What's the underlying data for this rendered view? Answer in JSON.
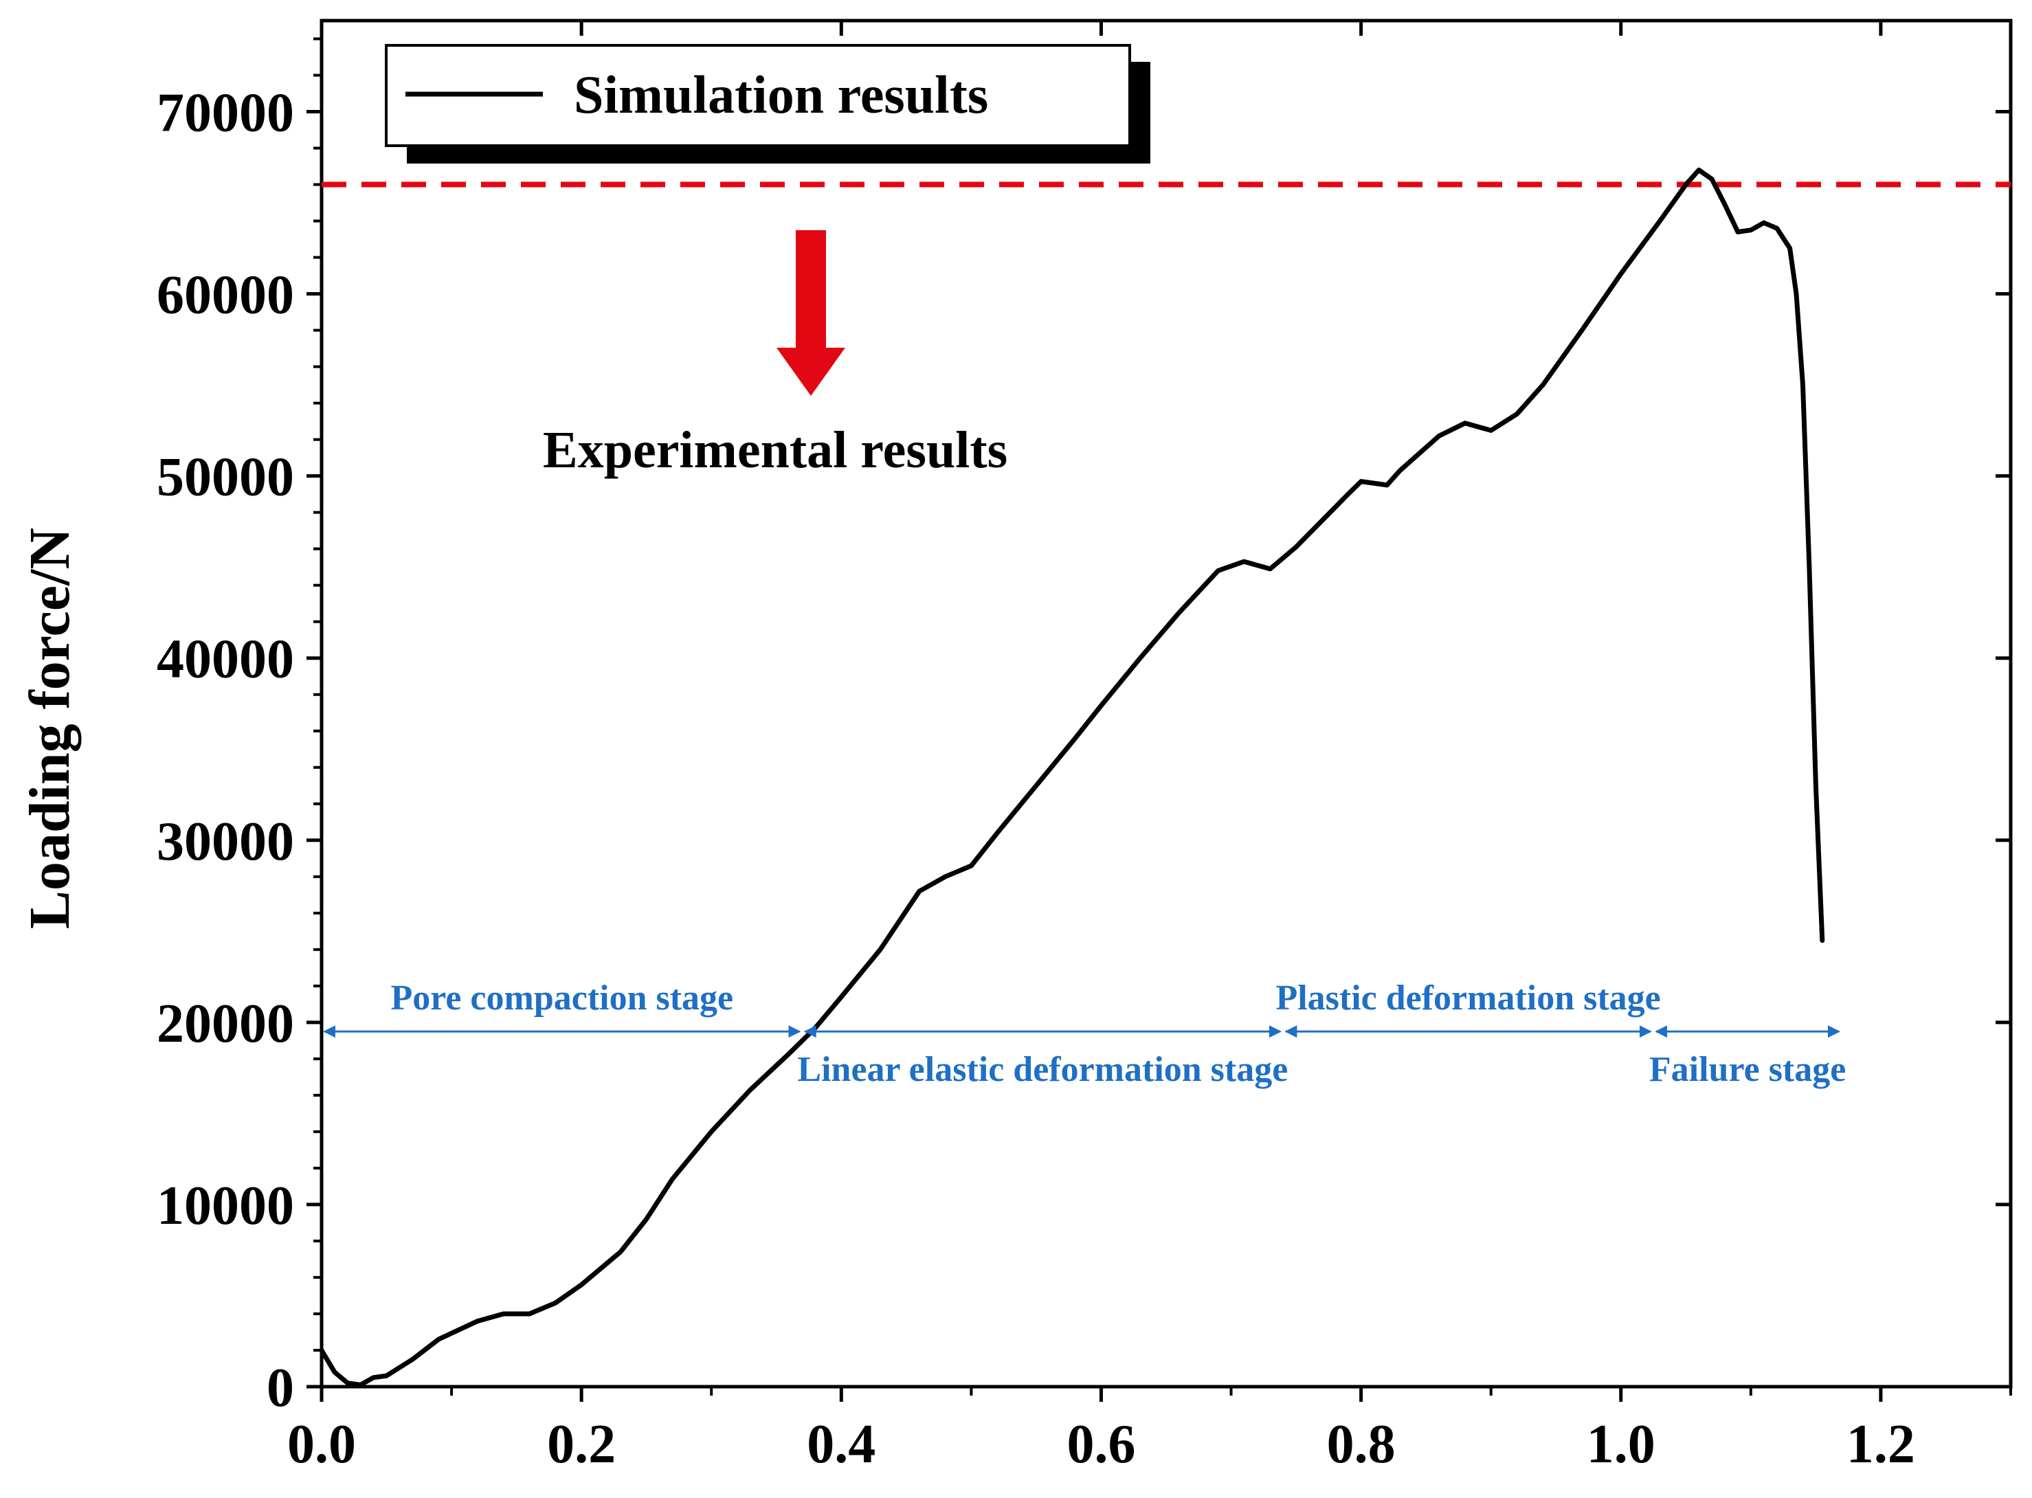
{
  "chart_data": {
    "type": "line",
    "title": "",
    "xlabel": "",
    "ylabel": "Loading force/N",
    "xlim": [
      0,
      1.3
    ],
    "ylim": [
      0,
      75000
    ],
    "x_ticks": [
      0.0,
      0.2,
      0.4,
      0.6,
      0.8,
      1.0,
      1.2
    ],
    "x_tick_labels": [
      "0.0",
      "0.2",
      "0.4",
      "0.6",
      "0.8",
      "1.0",
      "1.2"
    ],
    "y_ticks": [
      0,
      10000,
      20000,
      30000,
      40000,
      50000,
      60000,
      70000
    ],
    "y_tick_labels": [
      "0",
      "10000",
      "20000",
      "30000",
      "40000",
      "50000",
      "60000",
      "70000"
    ],
    "legend": {
      "placement": "top-left",
      "entries": [
        {
          "label": "Simulation results",
          "color": "#000000"
        }
      ]
    },
    "series": [
      {
        "name": "Simulation results",
        "color": "#000000",
        "points": [
          [
            0.0,
            2000
          ],
          [
            0.01,
            800
          ],
          [
            0.02,
            200
          ],
          [
            0.03,
            100
          ],
          [
            0.04,
            500
          ],
          [
            0.05,
            600
          ],
          [
            0.07,
            1500
          ],
          [
            0.09,
            2600
          ],
          [
            0.12,
            3600
          ],
          [
            0.14,
            4000
          ],
          [
            0.16,
            4000
          ],
          [
            0.18,
            4600
          ],
          [
            0.2,
            5600
          ],
          [
            0.23,
            7400
          ],
          [
            0.25,
            9200
          ],
          [
            0.27,
            11400
          ],
          [
            0.3,
            14000
          ],
          [
            0.33,
            16300
          ],
          [
            0.36,
            18300
          ],
          [
            0.38,
            19700
          ],
          [
            0.4,
            21400
          ],
          [
            0.43,
            24000
          ],
          [
            0.46,
            27200
          ],
          [
            0.48,
            28000
          ],
          [
            0.5,
            28600
          ],
          [
            0.52,
            30400
          ],
          [
            0.55,
            33000
          ],
          [
            0.58,
            35600
          ],
          [
            0.6,
            37400
          ],
          [
            0.63,
            40000
          ],
          [
            0.66,
            42500
          ],
          [
            0.69,
            44800
          ],
          [
            0.71,
            45300
          ],
          [
            0.73,
            44900
          ],
          [
            0.75,
            46100
          ],
          [
            0.79,
            49000
          ],
          [
            0.8,
            49700
          ],
          [
            0.82,
            49500
          ],
          [
            0.83,
            50300
          ],
          [
            0.86,
            52200
          ],
          [
            0.88,
            52900
          ],
          [
            0.9,
            52500
          ],
          [
            0.92,
            53400
          ],
          [
            0.94,
            55000
          ],
          [
            0.97,
            58000
          ],
          [
            1.0,
            61100
          ],
          [
            1.03,
            64000
          ],
          [
            1.05,
            66000
          ],
          [
            1.06,
            66800
          ],
          [
            1.07,
            66300
          ],
          [
            1.08,
            64900
          ],
          [
            1.09,
            63400
          ],
          [
            1.1,
            63500
          ],
          [
            1.11,
            63900
          ],
          [
            1.12,
            63600
          ],
          [
            1.13,
            62500
          ],
          [
            1.135,
            60000
          ],
          [
            1.14,
            55000
          ],
          [
            1.145,
            45000
          ],
          [
            1.15,
            33000
          ],
          [
            1.155,
            24500
          ]
        ]
      }
    ],
    "reference_line": {
      "label": "Experimental results",
      "y": 66000,
      "color": "#e30613",
      "style": "dashed"
    },
    "stages": [
      {
        "label": "Pore compaction stage",
        "x_start": 0.0,
        "x_end": 0.37,
        "label_position": "above"
      },
      {
        "label": "Linear elastic deformation stage",
        "x_start": 0.37,
        "x_end": 0.74,
        "label_position": "below"
      },
      {
        "label": "Plastic deformation stage",
        "x_start": 0.74,
        "x_end": 1.025,
        "label_position": "above"
      },
      {
        "label": "Failure stage",
        "x_start": 1.025,
        "x_end": 1.17,
        "label_position": "below"
      }
    ],
    "stage_arrow_y": 19500,
    "stage_color": "#1f6fc5"
  }
}
